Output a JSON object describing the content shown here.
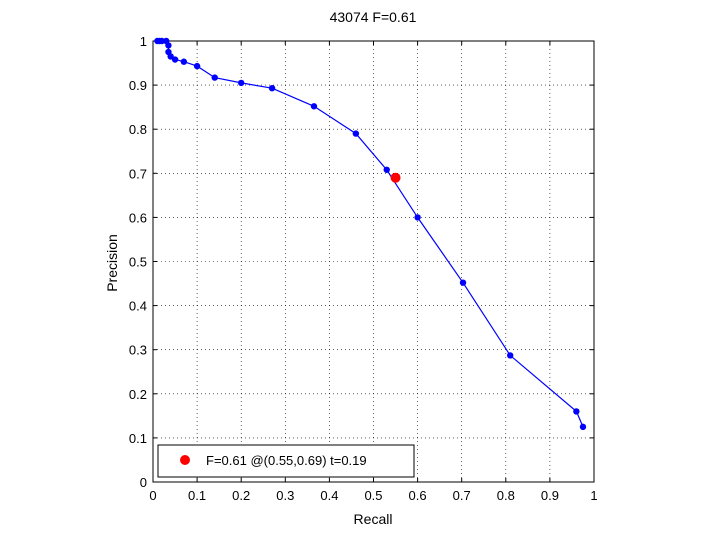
{
  "chart_data": {
    "type": "line",
    "title": "43074 F=0.61",
    "xlabel": "Recall",
    "ylabel": "Precision",
    "xlim": [
      0,
      1
    ],
    "ylim": [
      0,
      1
    ],
    "x_ticks": [
      "0",
      "0.1",
      "0.2",
      "0.3",
      "0.4",
      "0.5",
      "0.6",
      "0.7",
      "0.8",
      "0.9",
      "1"
    ],
    "y_ticks": [
      "0",
      "0.1",
      "0.2",
      "0.3",
      "0.4",
      "0.5",
      "0.6",
      "0.7",
      "0.8",
      "0.9",
      "1"
    ],
    "grid": true,
    "legend_position": "bottom-left",
    "series": [
      {
        "color": "#0000ff",
        "x": [
          0.01,
          0.015,
          0.02,
          0.03,
          0.035,
          0.035,
          0.04,
          0.05,
          0.07,
          0.1,
          0.14,
          0.2,
          0.27,
          0.365,
          0.46,
          0.53,
          0.6,
          0.703,
          0.81,
          0.96,
          0.975
        ],
        "y": [
          1.0,
          1.0,
          1.0,
          1.0,
          0.99,
          0.975,
          0.965,
          0.958,
          0.953,
          0.943,
          0.917,
          0.905,
          0.893,
          0.852,
          0.79,
          0.708,
          0.6,
          0.452,
          0.287,
          0.16,
          0.125
        ]
      }
    ],
    "highlight": {
      "x": 0.55,
      "y": 0.69,
      "color": "#ff0000",
      "label": "F=0.61 @(0.55,0.69) t=0.19"
    }
  }
}
